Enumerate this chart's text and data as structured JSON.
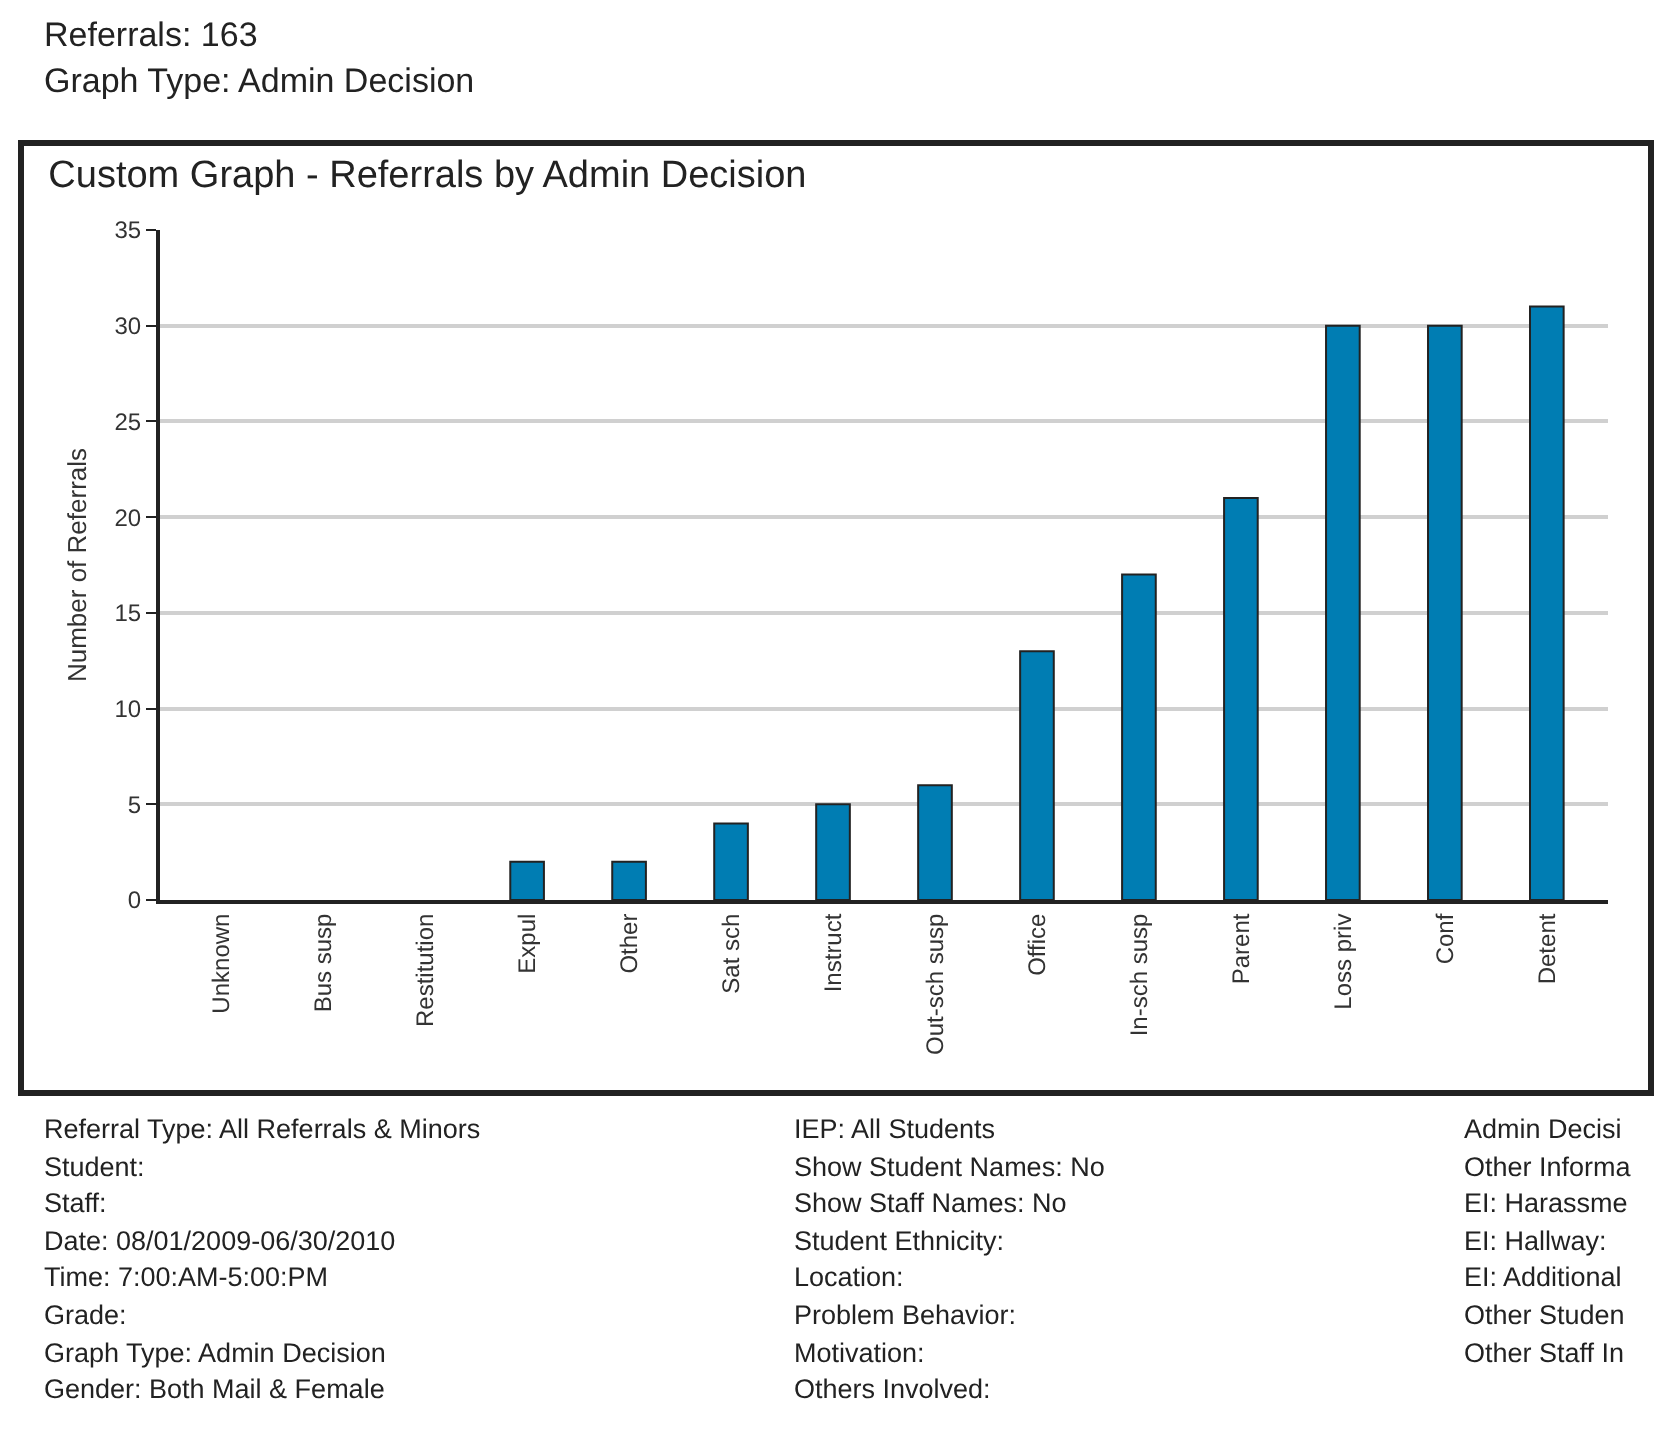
{
  "chart_data": {
    "type": "bar",
    "title": "Custom Graph - Referrals by Admin Decision",
    "ylabel": "Number of Referrals",
    "categories": [
      "Unknown",
      "Bus susp",
      "Restitution",
      "Expul",
      "Other",
      "Sat sch",
      "Instruct",
      "Out-sch susp",
      "Office",
      "In-sch susp",
      "Parent",
      "Loss priv",
      "Conf",
      "Detent"
    ],
    "values": [
      0,
      0,
      0,
      2,
      2,
      4,
      5,
      6,
      13,
      17,
      21,
      30,
      30,
      31
    ],
    "color": "#007db3",
    "ylim": [
      0,
      35
    ],
    "yticks": [
      0,
      5,
      10,
      15,
      20,
      25,
      30,
      35
    ],
    "grid": "y",
    "annotations": [
      "Referrals: 163",
      "Graph Type: Admin Decision",
      "Referral Type: All Referrals & Minors",
      "Student:",
      "Staff:",
      "Date: 08/01/2009-06/30/2010",
      "Time: 7:00:AM-5:00:PM",
      "Grade:",
      "Graph Type: Admin Decision",
      "Gender: Both Mail & Female",
      "IEP: All Students",
      "Show Student Names: No",
      "Show Staff Names: No",
      "Student Ethnicity:",
      "Location:",
      "Problem Behavior:",
      "Motivation:",
      "Others Involved:",
      "Admin Decisi",
      "Other Informa",
      "EI: Harassme",
      "EI: Hallway:",
      "EI: Additional",
      "Other Studen",
      "Other Staff In"
    ]
  }
}
